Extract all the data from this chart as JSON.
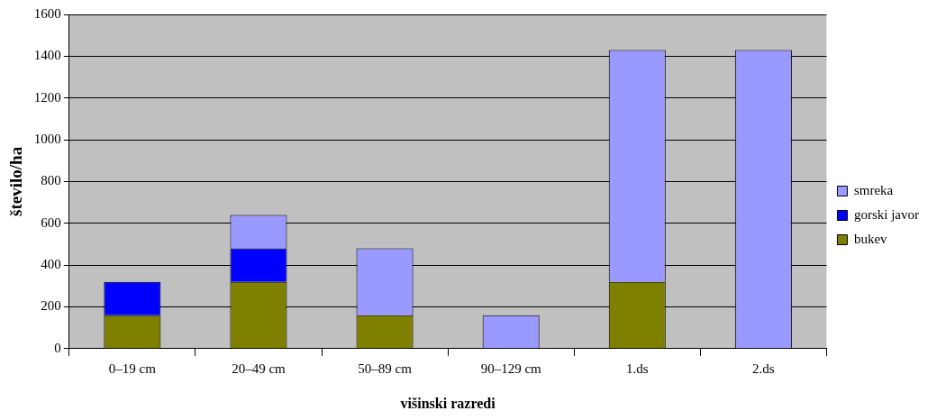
{
  "chart_data": {
    "type": "bar",
    "stacked": true,
    "xlabel": "višinski razredi",
    "ylabel": "število/ha",
    "categories": [
      "0–19 cm",
      "20–49 cm",
      "50–89 cm",
      "90–129 cm",
      "1.ds",
      "2.ds"
    ],
    "series": [
      {
        "name": "bukev",
        "color": "#808000",
        "values": [
          160,
          320,
          160,
          0,
          320,
          0
        ]
      },
      {
        "name": "gorski javor",
        "color": "#0000ff",
        "values": [
          160,
          160,
          0,
          0,
          0,
          0
        ]
      },
      {
        "name": "smreka",
        "color": "#9999ff",
        "values": [
          0,
          160,
          320,
          160,
          1110,
          1430
        ]
      }
    ],
    "ylim": [
      0,
      1600
    ],
    "yticks": [
      0,
      200,
      400,
      600,
      800,
      1000,
      1200,
      1400,
      1600
    ],
    "grid": "y",
    "legend": "right"
  }
}
